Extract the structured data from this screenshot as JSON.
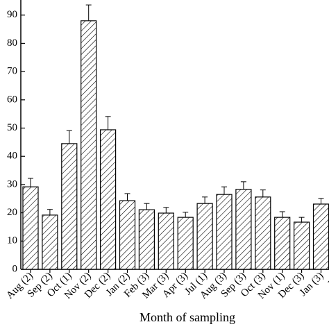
{
  "chart_data": {
    "type": "bar",
    "x_label": "Month of sampling",
    "categories": [
      "Aug (2)",
      "Sep (2)",
      "Oct (1)",
      "Nov (2)",
      "Dec (2)",
      "Jan (2)",
      "Feb (3)",
      "Mar (3)",
      "Apr (3)",
      "Jul (1)",
      "Aug (3)",
      "Sep (3)",
      "Oct (3)",
      "Nov (1)",
      "Dec (3)",
      "Jan (3)",
      "Feb"
    ],
    "values": [
      29.2,
      19.2,
      44.5,
      88,
      49.4,
      24.3,
      21.1,
      19.9,
      18.4,
      23.3,
      26.5,
      28.3,
      25.6,
      18.4,
      16.7,
      23.1,
      null
    ],
    "errors": [
      3,
      2,
      4.6,
      5.6,
      4.7,
      2.5,
      2.2,
      2,
      1.8,
      2.3,
      2.7,
      2.7,
      2.5,
      2,
      1.7,
      2,
      null
    ],
    "color": "#000000",
    "ylim": [
      0,
      95
    ],
    "yticks": [
      0,
      10,
      20,
      30,
      40,
      50,
      60,
      70,
      80,
      90
    ]
  }
}
